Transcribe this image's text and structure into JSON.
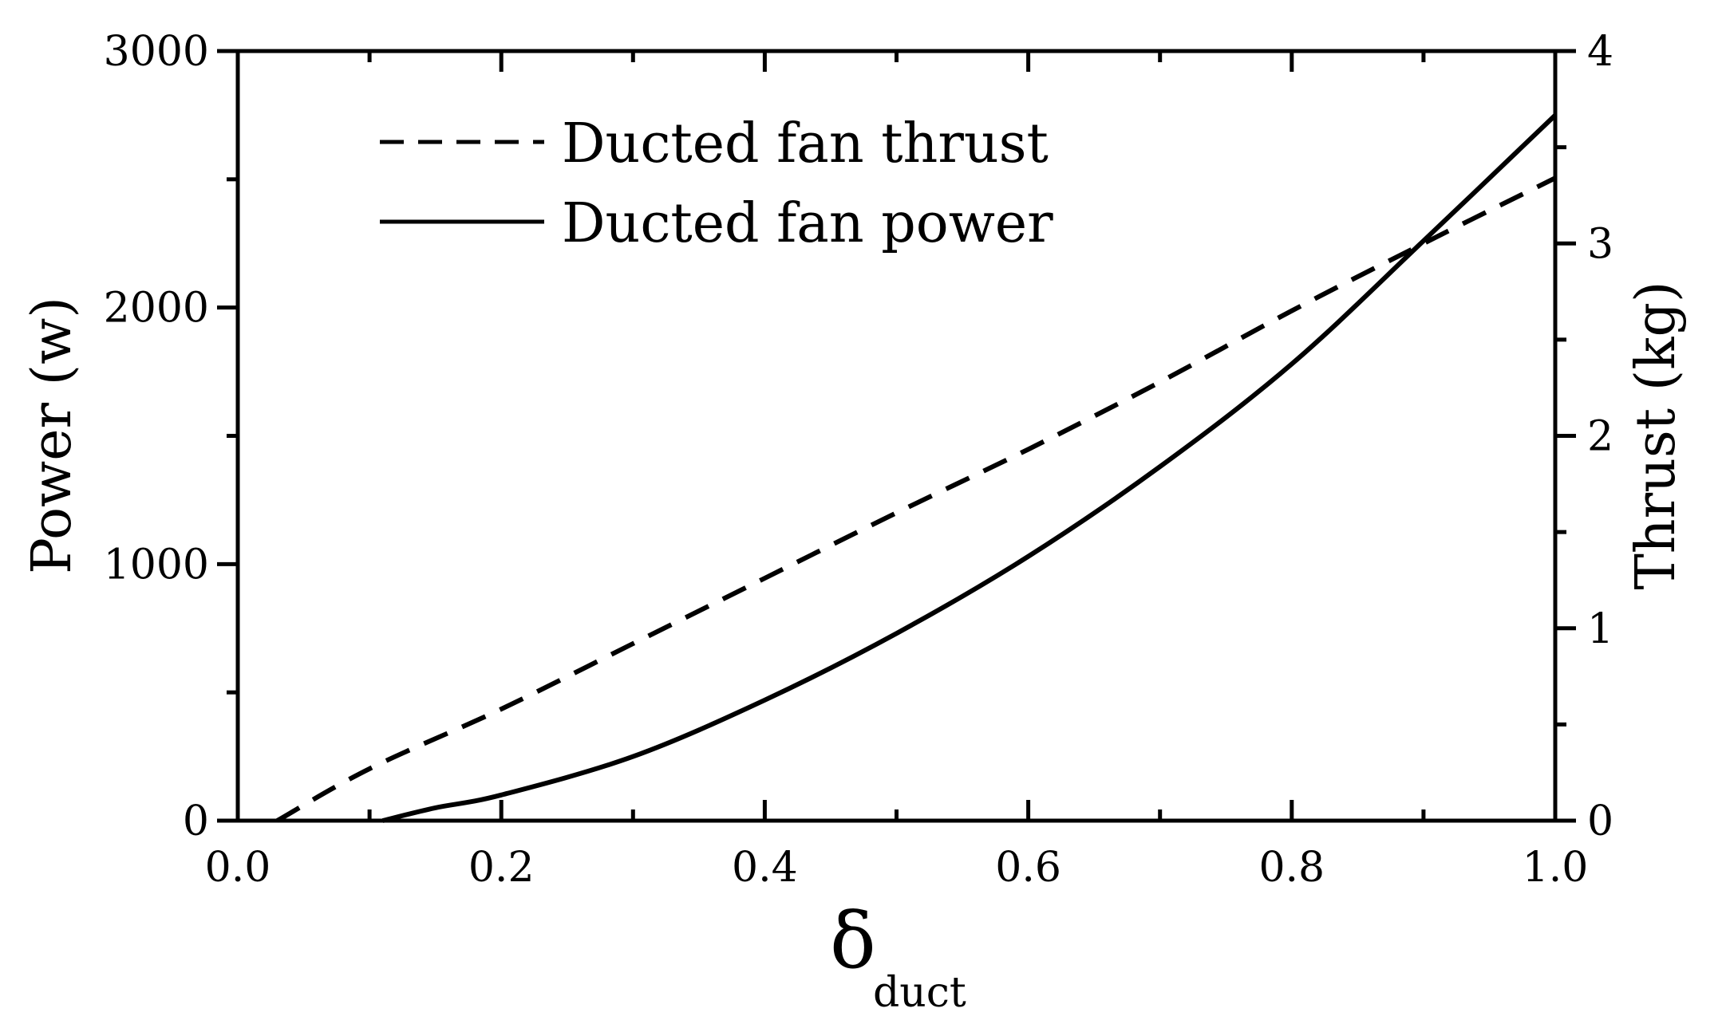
{
  "chart_data": {
    "type": "line",
    "xlabel": "δ",
    "xlabel_subscript": "duct",
    "ylabel_left": "Power (w)",
    "ylabel_right": "Thrust (kg)",
    "xlim": [
      0.0,
      1.0
    ],
    "ylim_left": [
      0,
      3000
    ],
    "ylim_right": [
      0,
      4
    ],
    "x_ticks": [
      "0.0",
      "0.2",
      "0.4",
      "0.6",
      "0.8",
      "1.0"
    ],
    "y_left_ticks": [
      "0",
      "1000",
      "2000",
      "3000"
    ],
    "y_right_ticks": [
      "0",
      "1",
      "2",
      "3",
      "4"
    ],
    "grid": false,
    "legend_position": "top-left",
    "series": [
      {
        "name": "Ducted fan thrust",
        "axis": "right",
        "style": "dashed",
        "x": [
          0.03,
          0.1,
          0.2,
          0.3,
          0.4,
          0.5,
          0.6,
          0.7,
          0.8,
          0.9,
          1.0
        ],
        "y": [
          0.0,
          0.27,
          0.58,
          0.92,
          1.26,
          1.6,
          1.93,
          2.28,
          2.65,
          3.0,
          3.34
        ]
      },
      {
        "name": "Ducted fan power",
        "axis": "left",
        "style": "solid",
        "x": [
          0.11,
          0.15,
          0.2,
          0.3,
          0.4,
          0.5,
          0.6,
          0.7,
          0.8,
          0.9,
          1.0
        ],
        "y": [
          0,
          50,
          100,
          250,
          470,
          730,
          1030,
          1380,
          1780,
          2260,
          2750
        ]
      }
    ]
  }
}
